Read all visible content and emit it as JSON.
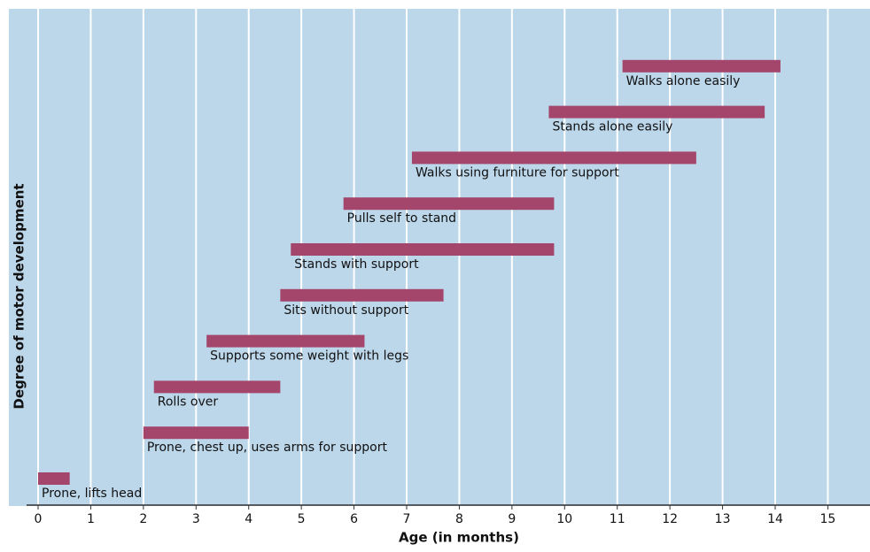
{
  "chart_data": {
    "type": "range-bar",
    "x_label": "Age (in months)",
    "y_label": "Degree of motor development",
    "categories": [
      "Prone, lifts head",
      "Prone, chest up, uses arms for support",
      "Rolls over",
      "Supports some weight with legs",
      "Sits without support",
      "Stands with support",
      "Pulls self to stand",
      "Walks using furniture for support",
      "Stands alone easily",
      "Walks alone easily"
    ],
    "start": [
      0,
      2,
      2.2,
      3.2,
      4.6,
      4.8,
      5.8,
      7.1,
      9.7,
      11.1
    ],
    "end": [
      0.6,
      4,
      4.6,
      6.2,
      7.7,
      9.8,
      9.8,
      12.5,
      13.8,
      14.1
    ],
    "color": "#a4456c",
    "xlim": [
      0,
      15.75
    ],
    "xticks": [
      0,
      1,
      2,
      3,
      4,
      5,
      6,
      7,
      8,
      9,
      10,
      11,
      12,
      13,
      14,
      15
    ],
    "grid": true
  }
}
